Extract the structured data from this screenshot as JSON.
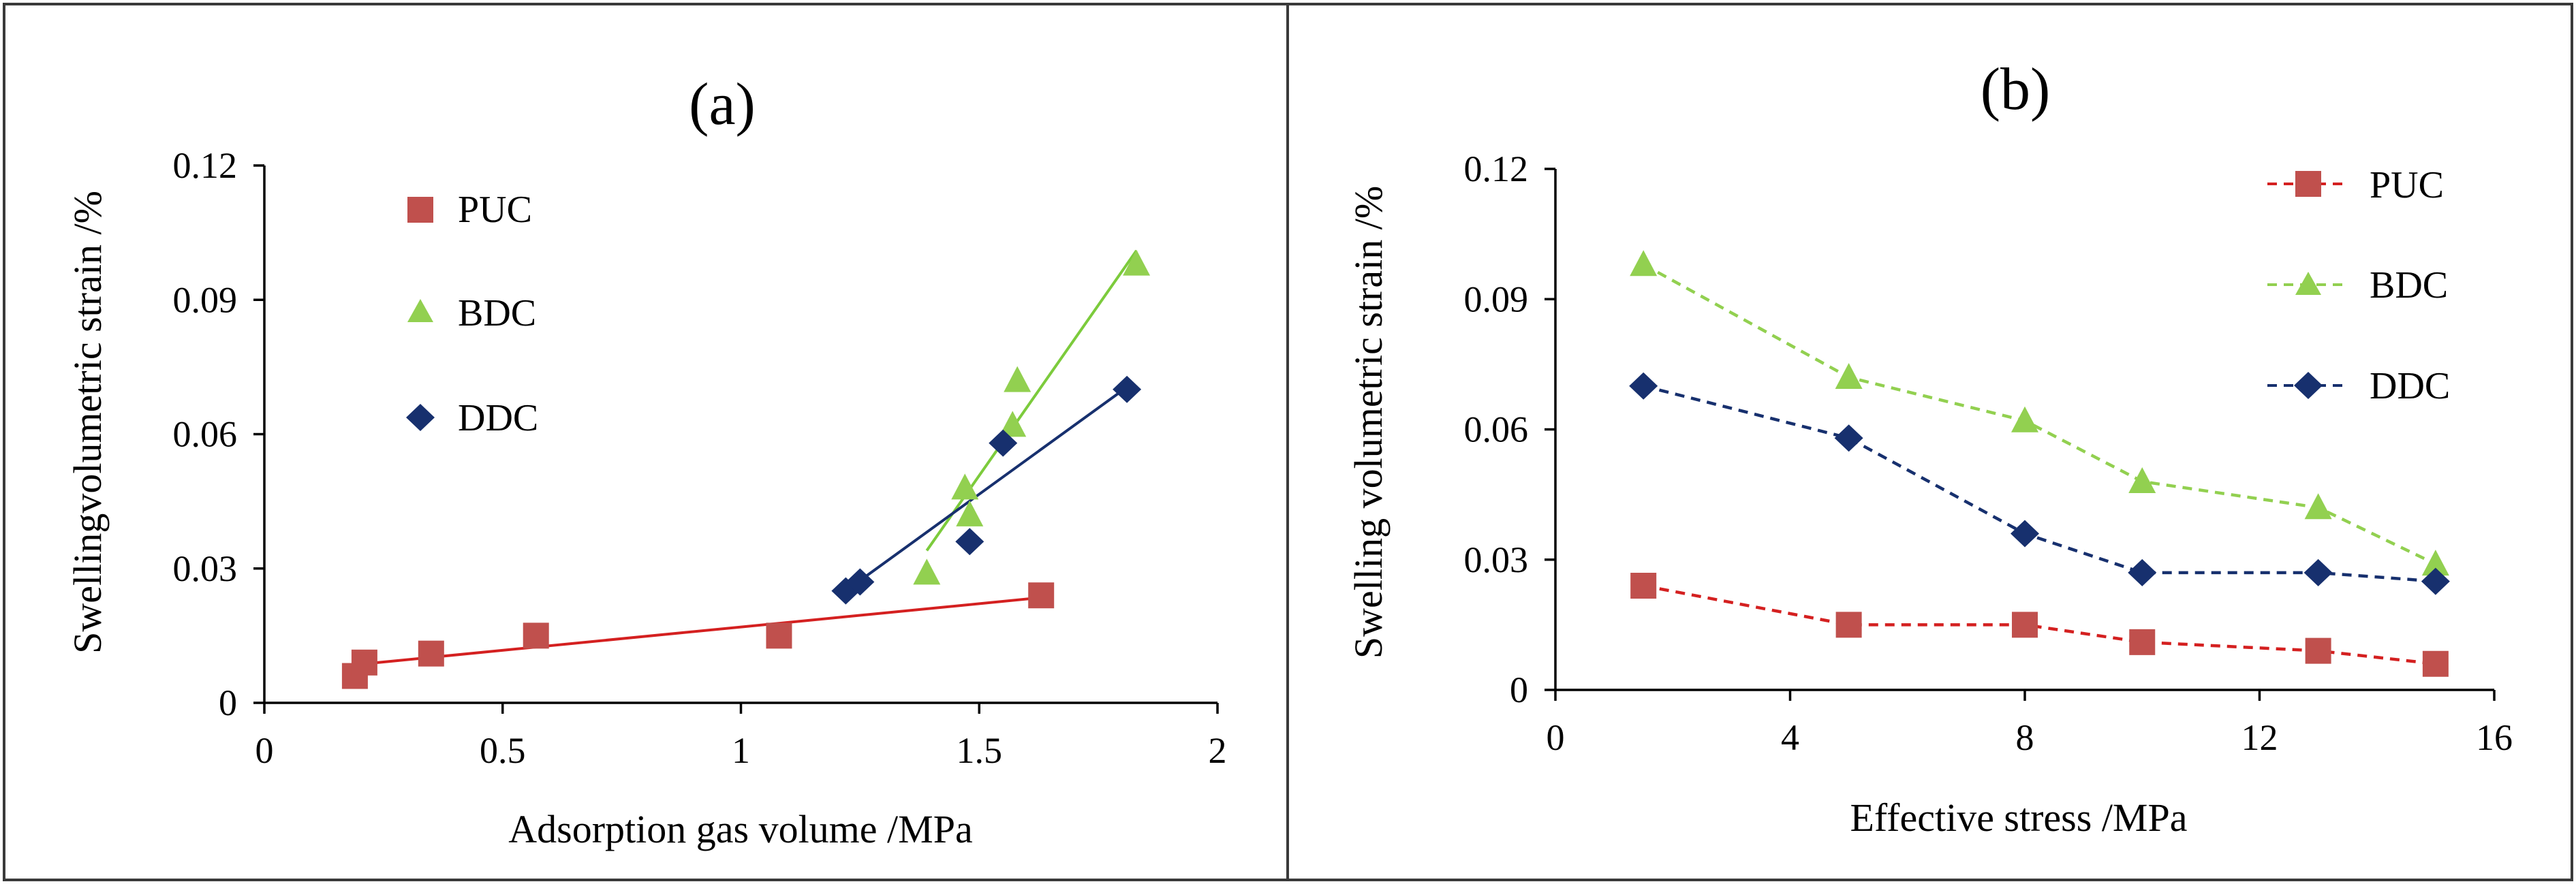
{
  "chart_data": [
    {
      "type": "scatter",
      "panel_label": "(a)",
      "title": "",
      "xlabel": "Adsorption gas volume /MPa",
      "ylabel": "Swellingvolumetric strain /%",
      "xlim": [
        0,
        2
      ],
      "ylim": [
        0,
        0.12
      ],
      "xticks": [
        "0",
        "0.5",
        "1",
        "1.5",
        "2"
      ],
      "yticks": [
        "0",
        "0.03",
        "0.06",
        "0.09",
        "0.12"
      ],
      "grid": false,
      "legend_position": "top-left",
      "series": [
        {
          "name": "PUC",
          "marker": "square",
          "color": "#C0504D",
          "trend_color": "#D42020",
          "x": [
            0.19,
            0.21,
            0.35,
            0.57,
            1.08,
            1.63
          ],
          "y": [
            0.006,
            0.009,
            0.011,
            0.015,
            0.015,
            0.024
          ],
          "trendline": {
            "x": [
              0.19,
              1.63
            ],
            "y": [
              0.0085,
              0.0235
            ]
          }
        },
        {
          "name": "BDC",
          "marker": "triangle",
          "color": "#92D050",
          "trend_color": "#7CCB3C",
          "x": [
            1.39,
            1.47,
            1.48,
            1.57,
            1.58,
            1.83
          ],
          "y": [
            0.029,
            0.048,
            0.042,
            0.062,
            0.072,
            0.098
          ],
          "trendline": {
            "x": [
              1.39,
              1.83
            ],
            "y": [
              0.034,
              0.101
            ]
          }
        },
        {
          "name": "DDC",
          "marker": "diamond",
          "color": "#17306E",
          "trend_color": "#17306E",
          "x": [
            1.22,
            1.25,
            1.48,
            1.55,
            1.81
          ],
          "y": [
            0.025,
            0.027,
            0.036,
            0.058,
            0.07
          ],
          "trendline": {
            "x": [
              1.22,
              1.81
            ],
            "y": [
              0.025,
              0.0705
            ]
          }
        }
      ]
    },
    {
      "type": "line",
      "panel_label": "(b)",
      "title": "",
      "xlabel": "Effective stress /MPa",
      "ylabel": "Swelling volumetric strain /%",
      "xlim": [
        0,
        16
      ],
      "ylim": [
        0,
        0.12
      ],
      "xticks": [
        "0",
        "4",
        "8",
        "12",
        "16"
      ],
      "yticks": [
        "0",
        "0.03",
        "0.06",
        "0.09",
        "0.12"
      ],
      "grid": false,
      "legend_position": "top-right",
      "series": [
        {
          "name": "PUC",
          "marker": "square",
          "color": "#C0504D",
          "line_color": "#D42020",
          "line_style": "dashed",
          "x": [
            1.5,
            5,
            8,
            10,
            13,
            15
          ],
          "y": [
            0.024,
            0.015,
            0.015,
            0.011,
            0.009,
            0.006
          ]
        },
        {
          "name": "BDC",
          "marker": "triangle",
          "color": "#92D050",
          "line_color": "#92D050",
          "line_style": "dashed",
          "x": [
            1.5,
            5,
            8,
            10,
            13,
            15
          ],
          "y": [
            0.098,
            0.072,
            0.062,
            0.048,
            0.042,
            0.029
          ]
        },
        {
          "name": "DDC",
          "marker": "diamond",
          "color": "#17306E",
          "line_color": "#17306E",
          "line_style": "dashed",
          "x": [
            1.5,
            5,
            8,
            10,
            13,
            15
          ],
          "y": [
            0.07,
            0.058,
            0.036,
            0.027,
            0.027,
            0.025
          ]
        }
      ]
    }
  ]
}
